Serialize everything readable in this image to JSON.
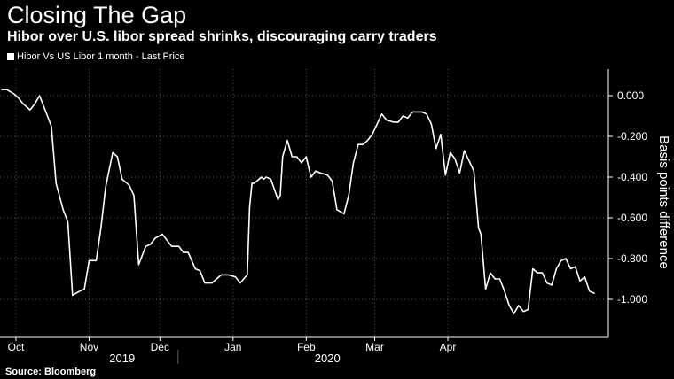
{
  "header": {
    "title": "Closing The Gap",
    "subtitle": "Hibor over U.S. libor spread shrinks, discouraging carry traders"
  },
  "footer": {
    "source": "Source: Bloomberg"
  },
  "colors": {
    "background": "#000000",
    "line": "#ffffff",
    "grid": "#5a5a5a",
    "text": "#ffffff"
  },
  "chart_data": {
    "type": "line",
    "ylabel": "Basis points difference",
    "ylim": [
      -1.15,
      0.05
    ],
    "yticks": [
      0.0,
      -0.2,
      -0.4,
      -0.6,
      -0.8,
      -1.0
    ],
    "ytick_labels": [
      "0.000",
      "-0.200",
      "-0.400",
      "-0.600",
      "-0.800",
      "-1.000"
    ],
    "y_axis_position": "right",
    "grid": "dotted",
    "legend_position": "top-left",
    "x_ticks": [
      {
        "label": "Oct",
        "date": "2019-10-01"
      },
      {
        "label": "Nov",
        "date": "2019-11-01"
      },
      {
        "label": "Dec",
        "date": "2019-12-01"
      },
      {
        "label": "Jan",
        "date": "2020-01-01"
      },
      {
        "label": "Feb",
        "date": "2020-02-01"
      },
      {
        "label": "Mar",
        "date": "2020-03-01"
      },
      {
        "label": "Apr",
        "date": "2020-04-01"
      }
    ],
    "year_labels": [
      {
        "label": "2019",
        "date": "2019-11-15"
      },
      {
        "label": "2020",
        "date": "2020-02-10"
      }
    ],
    "series": [
      {
        "name": "Hibor Vs US Libor 1 month - Last Price",
        "color": "#ffffff",
        "points": [
          [
            "2019-09-25",
            0.03
          ],
          [
            "2019-09-27",
            0.03
          ],
          [
            "2019-09-30",
            0.01
          ],
          [
            "2019-10-02",
            -0.01
          ],
          [
            "2019-10-04",
            -0.04
          ],
          [
            "2019-10-07",
            -0.07
          ],
          [
            "2019-10-09",
            -0.04
          ],
          [
            "2019-10-11",
            0.0
          ],
          [
            "2019-10-14",
            -0.09
          ],
          [
            "2019-10-16",
            -0.15
          ],
          [
            "2019-10-18",
            -0.43
          ],
          [
            "2019-10-21",
            -0.56
          ],
          [
            "2019-10-23",
            -0.62
          ],
          [
            "2019-10-25",
            -0.98
          ],
          [
            "2019-10-28",
            -0.96
          ],
          [
            "2019-10-30",
            -0.95
          ],
          [
            "2019-11-01",
            -0.81
          ],
          [
            "2019-11-04",
            -0.81
          ],
          [
            "2019-11-06",
            -0.65
          ],
          [
            "2019-11-08",
            -0.45
          ],
          [
            "2019-11-11",
            -0.28
          ],
          [
            "2019-11-13",
            -0.3
          ],
          [
            "2019-11-15",
            -0.41
          ],
          [
            "2019-11-18",
            -0.44
          ],
          [
            "2019-11-20",
            -0.49
          ],
          [
            "2019-11-22",
            -0.83
          ],
          [
            "2019-11-25",
            -0.74
          ],
          [
            "2019-11-27",
            -0.73
          ],
          [
            "2019-11-29",
            -0.7
          ],
          [
            "2019-12-02",
            -0.68
          ],
          [
            "2019-12-04",
            -0.71
          ],
          [
            "2019-12-06",
            -0.74
          ],
          [
            "2019-12-09",
            -0.74
          ],
          [
            "2019-12-11",
            -0.77
          ],
          [
            "2019-12-13",
            -0.77
          ],
          [
            "2019-12-16",
            -0.85
          ],
          [
            "2019-12-18",
            -0.86
          ],
          [
            "2019-12-20",
            -0.92
          ],
          [
            "2019-12-23",
            -0.92
          ],
          [
            "2019-12-25",
            -0.9
          ],
          [
            "2019-12-27",
            -0.88
          ],
          [
            "2019-12-30",
            -0.88
          ],
          [
            "2020-01-02",
            -0.89
          ],
          [
            "2020-01-04",
            -0.92
          ],
          [
            "2020-01-07",
            -0.88
          ],
          [
            "2020-01-08",
            -0.55
          ],
          [
            "2020-01-09",
            -0.43
          ],
          [
            "2020-01-10",
            -0.43
          ],
          [
            "2020-01-13",
            -0.4
          ],
          [
            "2020-01-14",
            -0.41
          ],
          [
            "2020-01-15",
            -0.4
          ],
          [
            "2020-01-17",
            -0.41
          ],
          [
            "2020-01-20",
            -0.51
          ],
          [
            "2020-01-21",
            -0.49
          ],
          [
            "2020-01-22",
            -0.3
          ],
          [
            "2020-01-24",
            -0.22
          ],
          [
            "2020-01-26",
            -0.3
          ],
          [
            "2020-01-28",
            -0.3
          ],
          [
            "2020-01-30",
            -0.33
          ],
          [
            "2020-02-01",
            -0.3
          ],
          [
            "2020-02-03",
            -0.4
          ],
          [
            "2020-02-05",
            -0.37
          ],
          [
            "2020-02-07",
            -0.38
          ],
          [
            "2020-02-10",
            -0.39
          ],
          [
            "2020-02-12",
            -0.42
          ],
          [
            "2020-02-14",
            -0.56
          ],
          [
            "2020-02-17",
            -0.58
          ],
          [
            "2020-02-19",
            -0.49
          ],
          [
            "2020-02-21",
            -0.33
          ],
          [
            "2020-02-23",
            -0.24
          ],
          [
            "2020-02-25",
            -0.24
          ],
          [
            "2020-02-27",
            -0.22
          ],
          [
            "2020-02-29",
            -0.19
          ],
          [
            "2020-03-02",
            -0.14
          ],
          [
            "2020-03-04",
            -0.09
          ],
          [
            "2020-03-06",
            -0.12
          ],
          [
            "2020-03-09",
            -0.13
          ],
          [
            "2020-03-11",
            -0.13
          ],
          [
            "2020-03-13",
            -0.1
          ],
          [
            "2020-03-15",
            -0.11
          ],
          [
            "2020-03-17",
            -0.08
          ],
          [
            "2020-03-19",
            -0.08
          ],
          [
            "2020-03-21",
            -0.08
          ],
          [
            "2020-03-23",
            -0.09
          ],
          [
            "2020-03-25",
            -0.14
          ],
          [
            "2020-03-27",
            -0.26
          ],
          [
            "2020-03-29",
            -0.19
          ],
          [
            "2020-03-31",
            -0.39
          ],
          [
            "2020-04-02",
            -0.28
          ],
          [
            "2020-04-04",
            -0.31
          ],
          [
            "2020-04-06",
            -0.38
          ],
          [
            "2020-04-08",
            -0.27
          ],
          [
            "2020-04-10",
            -0.32
          ],
          [
            "2020-04-12",
            -0.37
          ],
          [
            "2020-04-14",
            -0.65
          ],
          [
            "2020-04-15",
            -0.68
          ],
          [
            "2020-04-17",
            -0.95
          ],
          [
            "2020-04-19",
            -0.87
          ],
          [
            "2020-04-21",
            -0.9
          ],
          [
            "2020-04-23",
            -0.9
          ],
          [
            "2020-04-25",
            -0.96
          ],
          [
            "2020-04-27",
            -1.03
          ],
          [
            "2020-04-29",
            -1.07
          ],
          [
            "2020-05-01",
            -1.03
          ],
          [
            "2020-05-03",
            -1.06
          ],
          [
            "2020-05-05",
            -1.05
          ],
          [
            "2020-05-07",
            -0.85
          ],
          [
            "2020-05-09",
            -0.87
          ],
          [
            "2020-05-11",
            -0.87
          ],
          [
            "2020-05-13",
            -0.92
          ],
          [
            "2020-05-15",
            -0.93
          ],
          [
            "2020-05-17",
            -0.85
          ],
          [
            "2020-05-19",
            -0.81
          ],
          [
            "2020-05-21",
            -0.8
          ],
          [
            "2020-05-23",
            -0.85
          ],
          [
            "2020-05-25",
            -0.84
          ],
          [
            "2020-05-27",
            -0.91
          ],
          [
            "2020-05-29",
            -0.89
          ],
          [
            "2020-05-31",
            -0.96
          ],
          [
            "2020-06-02",
            -0.97
          ]
        ]
      }
    ]
  }
}
